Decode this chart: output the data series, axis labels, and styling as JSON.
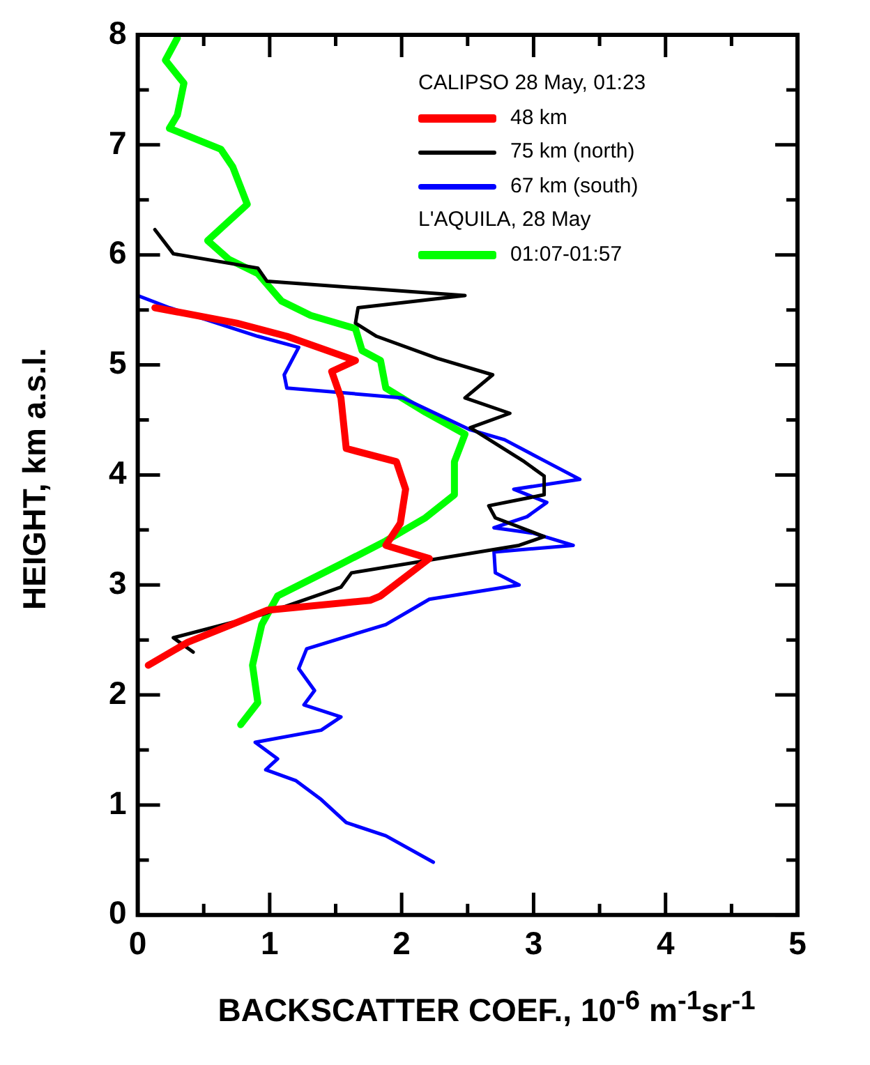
{
  "chart_data": {
    "type": "line",
    "xlabel": "BACKSCATTER COEF., 10$^{-6}$ m$^{-1}$sr$^{-1}$",
    "ylabel": "HEIGHT, km a.s.l.",
    "legend_title": "CALIPSO 28 May, 01:23",
    "annotations": [
      "L'AQUILA, 28 May"
    ],
    "legend": "top right",
    "grid": false,
    "marker": "none",
    "line_style": "solid",
    "xlim": [
      0,
      5
    ],
    "xticks": [
      0,
      {
        "value": 0.5,
        "label": null
      },
      1,
      {
        "value": 1.5,
        "label": null
      },
      2,
      {
        "value": 2.5,
        "label": null
      },
      3,
      {
        "value": 3.5,
        "label": null
      },
      4,
      {
        "value": 4.5,
        "label": null
      },
      5
    ],
    "ylim": [
      0,
      8
    ],
    "yticks": [
      0,
      {
        "value": 0.5,
        "label": null
      },
      1,
      {
        "value": 1.5,
        "label": null
      },
      2,
      {
        "value": 2.5,
        "label": null
      },
      3,
      {
        "value": 3.5,
        "label": null
      },
      4,
      {
        "value": 4.5,
        "label": null
      },
      5,
      {
        "value": 5.5,
        "label": null
      },
      6,
      {
        "value": 6.5,
        "label": null
      },
      7,
      {
        "value": 7.5,
        "label": null
      },
      8
    ],
    "series": [
      {
        "name": "48 km",
        "color": "#ff0000",
        "x": [
          0.13,
          0.75,
          1.13,
          1.65,
          1.47,
          1.54,
          1.58,
          1.96,
          2.03,
          1.99,
          1.88,
          2.21,
          1.84,
          1.76,
          0.98,
          0.38,
          0.08
        ],
        "values": [
          5.52,
          5.38,
          5.26,
          5.04,
          4.94,
          4.7,
          4.24,
          4.12,
          3.87,
          3.56,
          3.36,
          3.24,
          2.9,
          2.86,
          2.77,
          2.48,
          2.27
        ]
      },
      {
        "name": "75 km (north)",
        "color": "#000000",
        "x": [
          0.13,
          0.27,
          0.91,
          0.98,
          2.48,
          1.67,
          1.65,
          1.81,
          2.27,
          2.69,
          2.48,
          2.82,
          2.52,
          2.93,
          3.08,
          3.08,
          2.66,
          2.71,
          3.08,
          2.89,
          1.62,
          1.54,
          0.94,
          0.27,
          0.42
        ],
        "values": [
          6.23,
          6.01,
          5.88,
          5.76,
          5.63,
          5.52,
          5.38,
          5.26,
          5.06,
          4.91,
          4.7,
          4.56,
          4.43,
          4.12,
          3.99,
          3.82,
          3.72,
          3.61,
          3.44,
          3.36,
          3.11,
          2.98,
          2.73,
          2.52,
          2.39
        ]
      },
      {
        "name": "67 km (south)",
        "color": "#0000ff",
        "x": [
          0,
          0.24,
          0.91,
          1.22,
          1.11,
          1.13,
          2.01,
          2.52,
          2.78,
          3.08,
          3.35,
          2.85,
          3.1,
          2.95,
          2.7,
          3.0,
          3.3,
          2.7,
          2.71,
          2.89,
          2.21,
          1.88,
          1.28,
          1.22,
          1.34,
          1.26,
          1.54,
          1.39,
          0.89,
          1.06,
          0.97,
          1.2,
          1.39,
          1.58,
          1.88,
          2.24
        ],
        "values": [
          5.63,
          5.52,
          5.26,
          5.16,
          4.91,
          4.79,
          4.7,
          4.41,
          4.32,
          4.13,
          3.96,
          3.87,
          3.75,
          3.62,
          3.52,
          3.47,
          3.36,
          3.3,
          3.11,
          3.0,
          2.87,
          2.64,
          2.42,
          2.24,
          2.04,
          1.91,
          1.8,
          1.68,
          1.57,
          1.42,
          1.32,
          1.22,
          1.05,
          0.84,
          0.72,
          0.48
        ]
      },
      {
        "name": "01:07-01:57",
        "color": "#00ff00",
        "x": [
          0.3,
          0.21,
          0.35,
          0.3,
          0.24,
          0.63,
          0.72,
          0.83,
          0.53,
          0.69,
          0.91,
          1.09,
          1.31,
          1.65,
          1.7,
          1.84,
          1.88,
          2.18,
          2.48,
          2.4,
          2.4,
          2.18,
          1.88,
          1.54,
          1.06,
          0.94,
          0.87,
          0.91,
          0.78
        ],
        "values": [
          7.97,
          7.77,
          7.56,
          7.27,
          7.15,
          6.96,
          6.8,
          6.46,
          6.13,
          5.96,
          5.83,
          5.58,
          5.45,
          5.33,
          5.13,
          5.04,
          4.79,
          4.57,
          4.37,
          4.12,
          3.82,
          3.61,
          3.4,
          3.19,
          2.9,
          2.64,
          2.27,
          1.93,
          1.73
        ]
      }
    ]
  }
}
